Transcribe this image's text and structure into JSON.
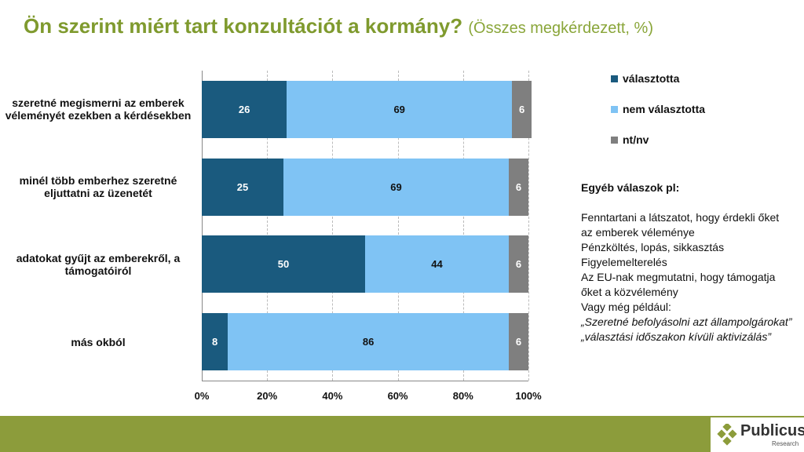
{
  "chart_data": {
    "type": "stacked_barh",
    "title": "Ön szerint miért tart konzultációt a kormány?",
    "subtitle": "(Összes megkérdezett, %)",
    "categories": [
      "szeretné megismerni az emberek véleményét ezekben a kérdésekben",
      "minél több emberhez szeretné eljuttatni az üzenetét",
      "adatokat gyűjt az emberekről, a támogatóiról",
      "más okból"
    ],
    "series": [
      {
        "name": "választotta",
        "color": "#1a5a7e",
        "values": [
          26,
          25,
          50,
          8
        ]
      },
      {
        "name": "nem választotta",
        "color": "#7fc3f4",
        "values": [
          69,
          69,
          44,
          86
        ]
      },
      {
        "name": "nt/nv",
        "color": "#7f7f7f",
        "values": [
          6,
          6,
          6,
          6
        ]
      }
    ],
    "xlim": [
      0,
      100
    ],
    "xticks": [
      {
        "value": 0,
        "label": "0%"
      },
      {
        "value": 20,
        "label": "20%"
      },
      {
        "value": 40,
        "label": "40%"
      },
      {
        "value": 60,
        "label": "60%"
      },
      {
        "value": 80,
        "label": "80%"
      },
      {
        "value": 100,
        "label": "100%"
      }
    ],
    "grid": true,
    "notes_title": "Egyéb válaszok pl:",
    "notes": [
      "Fenntartani a látszatot, hogy érdekli őket az emberek véleménye",
      "Pénzköltés, lopás, sikkasztás",
      "Figyelemelterelés",
      "Az EU-nak megmutatni, hogy támogatja őket a közvélemény",
      "Vagy még például:"
    ],
    "quotes": [
      "„Szeretné befolyásolni azt állampolgárokat”",
      "„választási időszakon kívüli aktivizálás”"
    ]
  },
  "brand": "Publicus",
  "brand_sub": "Research"
}
